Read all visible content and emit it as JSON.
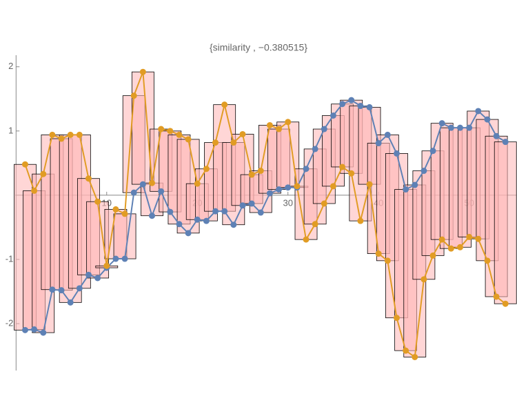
{
  "chart_data": {
    "type": "line",
    "title": "{similarity , −0.380515}",
    "x": [
      1,
      2,
      3,
      4,
      5,
      6,
      7,
      8,
      9,
      10,
      11,
      12,
      13,
      14,
      15,
      16,
      17,
      18,
      19,
      20,
      21,
      22,
      23,
      24,
      25,
      26,
      27,
      28,
      29,
      30,
      31,
      32,
      33,
      34,
      35,
      36,
      37,
      38,
      39,
      40,
      41,
      42,
      43,
      44,
      45,
      46,
      47,
      48,
      49,
      50,
      51,
      52,
      53,
      54
    ],
    "series": [
      {
        "color": "#5e81b5",
        "values": [
          -2.1,
          -2.09,
          -2.14,
          -1.47,
          -1.48,
          -1.67,
          -1.45,
          -1.24,
          -1.29,
          -1.13,
          -0.99,
          -0.99,
          0.04,
          0.17,
          -0.32,
          0.06,
          -0.26,
          -0.45,
          -0.59,
          -0.38,
          -0.4,
          -0.25,
          -0.25,
          -0.46,
          -0.16,
          -0.13,
          -0.27,
          0.03,
          0.09,
          0.12,
          0.12,
          0.41,
          0.72,
          1.03,
          1.24,
          1.42,
          1.48,
          1.39,
          1.37,
          0.81,
          0.94,
          0.65,
          0.09,
          0.16,
          0.38,
          0.69,
          1.12,
          1.05,
          1.05,
          1.05,
          1.31,
          1.18,
          0.92,
          0.83
        ]
      },
      {
        "color": "#e19c24",
        "values": [
          0.48,
          0.07,
          0.33,
          0.94,
          0.88,
          0.94,
          0.94,
          0.26,
          -0.1,
          -1.1,
          -0.22,
          -0.29,
          1.55,
          1.92,
          0.19,
          1.03,
          1.0,
          0.94,
          0.87,
          0.18,
          0.41,
          0.82,
          1.41,
          0.82,
          0.95,
          0.32,
          0.38,
          1.09,
          1.03,
          1.14,
          0.14,
          -0.69,
          -0.45,
          -0.13,
          0.14,
          0.44,
          0.34,
          -0.4,
          0.17,
          -0.91,
          -1.02,
          -1.91,
          -2.42,
          -2.52,
          -1.31,
          -0.94,
          -0.69,
          -0.83,
          -0.81,
          -0.65,
          -0.68,
          -1.02,
          -1.58,
          -1.69
        ]
      }
    ],
    "band_color": "#ffb4b4",
    "xlim": [
      -0.1,
      55.2
    ],
    "ylim": [
      -2.73,
      2.18
    ],
    "xticks": [
      10,
      20,
      30,
      40,
      50
    ],
    "yticks": [
      -2,
      -1,
      1,
      2
    ]
  }
}
